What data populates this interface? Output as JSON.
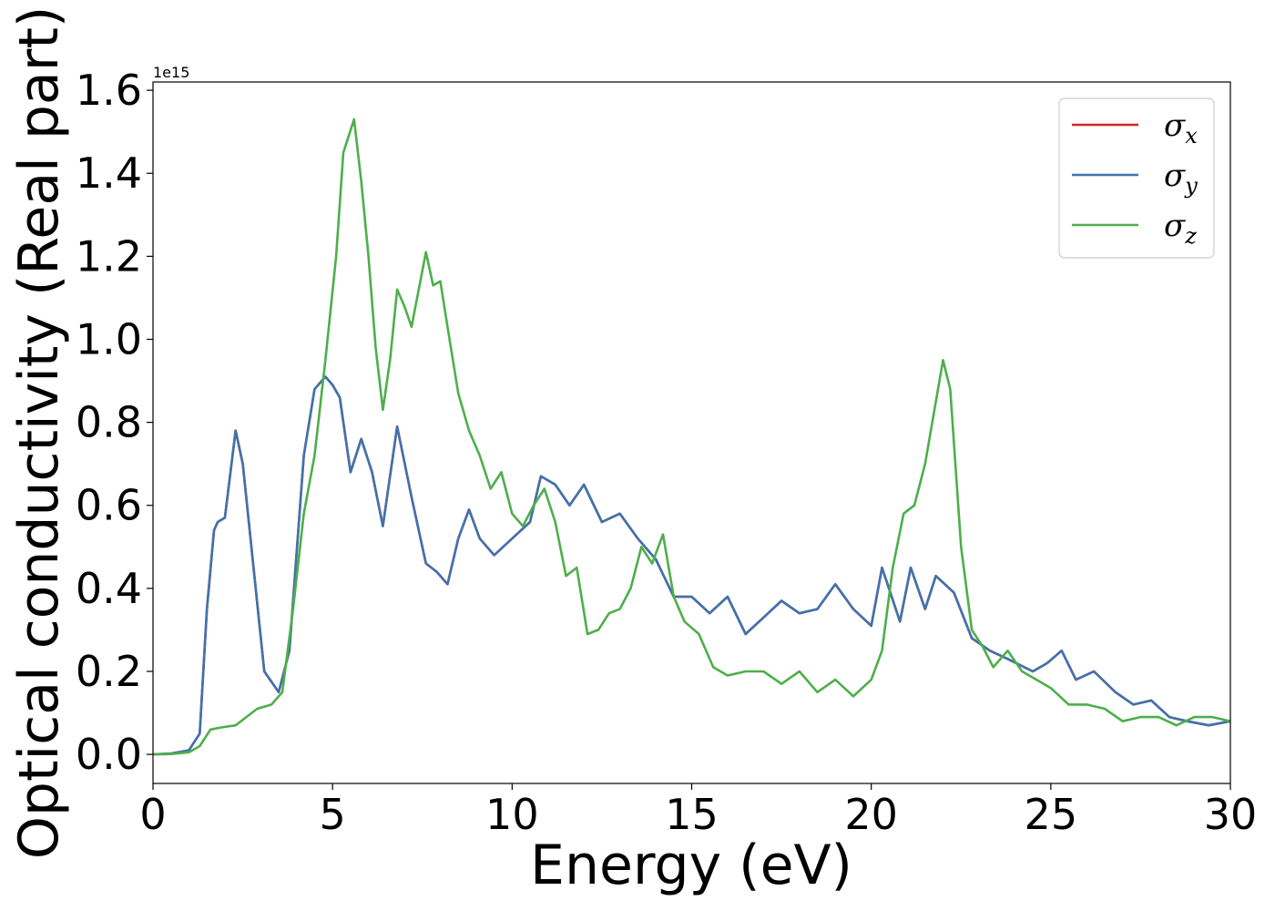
{
  "chart_data": {
    "type": "line",
    "xlabel": "Energy (eV)",
    "ylabel": "Optical conductivity (Real part)",
    "y_offset_label": "1e15",
    "xlim": [
      0,
      30
    ],
    "ylim": [
      -0.07,
      1.62
    ],
    "x_ticks": [
      0,
      5,
      10,
      15,
      20,
      25,
      30
    ],
    "x_tick_labels": [
      "0",
      "5",
      "10",
      "15",
      "20",
      "25",
      "30"
    ],
    "y_ticks": [
      0.0,
      0.2,
      0.4,
      0.6,
      0.8,
      1.0,
      1.2,
      1.4,
      1.6
    ],
    "y_tick_labels": [
      "0.0",
      "0.2",
      "0.4",
      "0.6",
      "0.8",
      "1.0",
      "1.2",
      "1.4",
      "1.6"
    ],
    "grid": false,
    "legend_position": "top-right",
    "series": [
      {
        "name": "σx",
        "legend_symbol": "σ",
        "legend_sub": "x",
        "color": "#d62728",
        "x": [
          0,
          0.5,
          1.0,
          1.3,
          1.5,
          1.7,
          1.8,
          2.0,
          2.3,
          2.5,
          2.8,
          3.1,
          3.5,
          3.8,
          4.2,
          4.5,
          4.8,
          5.0,
          5.2,
          5.5,
          5.8,
          6.1,
          6.4,
          6.8,
          7.2,
          7.6,
          7.9,
          8.2,
          8.5,
          8.8,
          9.1,
          9.5,
          10.0,
          10.5,
          10.8,
          11.2,
          11.6,
          12.0,
          12.5,
          13.0,
          13.5,
          14.0,
          14.5,
          15.0,
          15.5,
          16.0,
          16.5,
          17.0,
          17.5,
          18.0,
          18.5,
          19.0,
          19.5,
          20.0,
          20.3,
          20.8,
          21.1,
          21.5,
          21.8,
          22.3,
          22.8,
          23.3,
          23.8,
          24.5,
          24.9,
          25.3,
          25.7,
          26.2,
          26.8,
          27.3,
          27.8,
          28.3,
          28.8,
          29.4,
          30.0
        ],
        "y": [
          0.0,
          0.002,
          0.01,
          0.05,
          0.35,
          0.54,
          0.56,
          0.57,
          0.78,
          0.7,
          0.45,
          0.2,
          0.15,
          0.25,
          0.72,
          0.88,
          0.91,
          0.89,
          0.86,
          0.68,
          0.76,
          0.68,
          0.55,
          0.79,
          0.62,
          0.46,
          0.44,
          0.41,
          0.52,
          0.59,
          0.52,
          0.48,
          0.52,
          0.56,
          0.67,
          0.65,
          0.6,
          0.65,
          0.56,
          0.58,
          0.52,
          0.47,
          0.38,
          0.38,
          0.34,
          0.38,
          0.29,
          0.33,
          0.37,
          0.34,
          0.35,
          0.41,
          0.35,
          0.31,
          0.45,
          0.32,
          0.45,
          0.35,
          0.43,
          0.39,
          0.28,
          0.25,
          0.23,
          0.2,
          0.22,
          0.25,
          0.18,
          0.2,
          0.15,
          0.12,
          0.13,
          0.09,
          0.08,
          0.07,
          0.08
        ]
      },
      {
        "name": "σy",
        "legend_symbol": "σ",
        "legend_sub": "y",
        "color": "#3f73ad",
        "x": [
          0,
          0.5,
          1.0,
          1.3,
          1.5,
          1.7,
          1.8,
          2.0,
          2.3,
          2.5,
          2.8,
          3.1,
          3.5,
          3.8,
          4.2,
          4.5,
          4.8,
          5.0,
          5.2,
          5.5,
          5.8,
          6.1,
          6.4,
          6.8,
          7.2,
          7.6,
          7.9,
          8.2,
          8.5,
          8.8,
          9.1,
          9.5,
          10.0,
          10.5,
          10.8,
          11.2,
          11.6,
          12.0,
          12.5,
          13.0,
          13.5,
          14.0,
          14.5,
          15.0,
          15.5,
          16.0,
          16.5,
          17.0,
          17.5,
          18.0,
          18.5,
          19.0,
          19.5,
          20.0,
          20.3,
          20.8,
          21.1,
          21.5,
          21.8,
          22.3,
          22.8,
          23.3,
          23.8,
          24.5,
          24.9,
          25.3,
          25.7,
          26.2,
          26.8,
          27.3,
          27.8,
          28.3,
          28.8,
          29.4,
          30.0
        ],
        "y": [
          0.0,
          0.002,
          0.01,
          0.05,
          0.35,
          0.54,
          0.56,
          0.57,
          0.78,
          0.7,
          0.45,
          0.2,
          0.15,
          0.25,
          0.72,
          0.88,
          0.91,
          0.89,
          0.86,
          0.68,
          0.76,
          0.68,
          0.55,
          0.79,
          0.62,
          0.46,
          0.44,
          0.41,
          0.52,
          0.59,
          0.52,
          0.48,
          0.52,
          0.56,
          0.67,
          0.65,
          0.6,
          0.65,
          0.56,
          0.58,
          0.52,
          0.47,
          0.38,
          0.38,
          0.34,
          0.38,
          0.29,
          0.33,
          0.37,
          0.34,
          0.35,
          0.41,
          0.35,
          0.31,
          0.45,
          0.32,
          0.45,
          0.35,
          0.43,
          0.39,
          0.28,
          0.25,
          0.23,
          0.2,
          0.22,
          0.25,
          0.18,
          0.2,
          0.15,
          0.12,
          0.13,
          0.09,
          0.08,
          0.07,
          0.08
        ]
      },
      {
        "name": "σz",
        "legend_symbol": "σ",
        "legend_sub": "z",
        "color": "#4daf4a",
        "x": [
          0,
          0.5,
          1.0,
          1.3,
          1.6,
          1.9,
          2.3,
          2.6,
          2.9,
          3.3,
          3.6,
          3.9,
          4.2,
          4.5,
          4.8,
          5.1,
          5.3,
          5.6,
          5.8,
          6.0,
          6.2,
          6.4,
          6.6,
          6.8,
          7.0,
          7.2,
          7.4,
          7.6,
          7.8,
          8.0,
          8.2,
          8.5,
          8.8,
          9.1,
          9.4,
          9.7,
          10.0,
          10.3,
          10.6,
          10.9,
          11.2,
          11.5,
          11.8,
          12.1,
          12.4,
          12.7,
          13.0,
          13.3,
          13.6,
          13.9,
          14.2,
          14.5,
          14.8,
          15.2,
          15.6,
          16.0,
          16.5,
          17.0,
          17.5,
          18.0,
          18.5,
          19.0,
          19.5,
          20.0,
          20.3,
          20.6,
          20.9,
          21.2,
          21.5,
          21.8,
          22.0,
          22.2,
          22.5,
          22.8,
          23.1,
          23.4,
          23.8,
          24.2,
          24.6,
          25.0,
          25.5,
          26.0,
          26.5,
          27.0,
          27.5,
          28.0,
          28.5,
          29.0,
          29.5,
          30.0
        ],
        "y": [
          0.0,
          0.001,
          0.005,
          0.02,
          0.06,
          0.065,
          0.07,
          0.09,
          0.11,
          0.12,
          0.15,
          0.35,
          0.58,
          0.72,
          0.95,
          1.2,
          1.45,
          1.53,
          1.38,
          1.2,
          0.98,
          0.83,
          0.95,
          1.12,
          1.08,
          1.03,
          1.12,
          1.21,
          1.13,
          1.14,
          1.03,
          0.87,
          0.78,
          0.72,
          0.64,
          0.68,
          0.58,
          0.55,
          0.6,
          0.64,
          0.56,
          0.43,
          0.45,
          0.29,
          0.3,
          0.34,
          0.35,
          0.4,
          0.5,
          0.46,
          0.53,
          0.38,
          0.32,
          0.29,
          0.21,
          0.19,
          0.2,
          0.2,
          0.17,
          0.2,
          0.15,
          0.18,
          0.14,
          0.18,
          0.25,
          0.45,
          0.58,
          0.6,
          0.7,
          0.85,
          0.95,
          0.88,
          0.5,
          0.3,
          0.26,
          0.21,
          0.25,
          0.2,
          0.18,
          0.16,
          0.12,
          0.12,
          0.11,
          0.08,
          0.09,
          0.09,
          0.07,
          0.09,
          0.09,
          0.08
        ]
      }
    ]
  }
}
